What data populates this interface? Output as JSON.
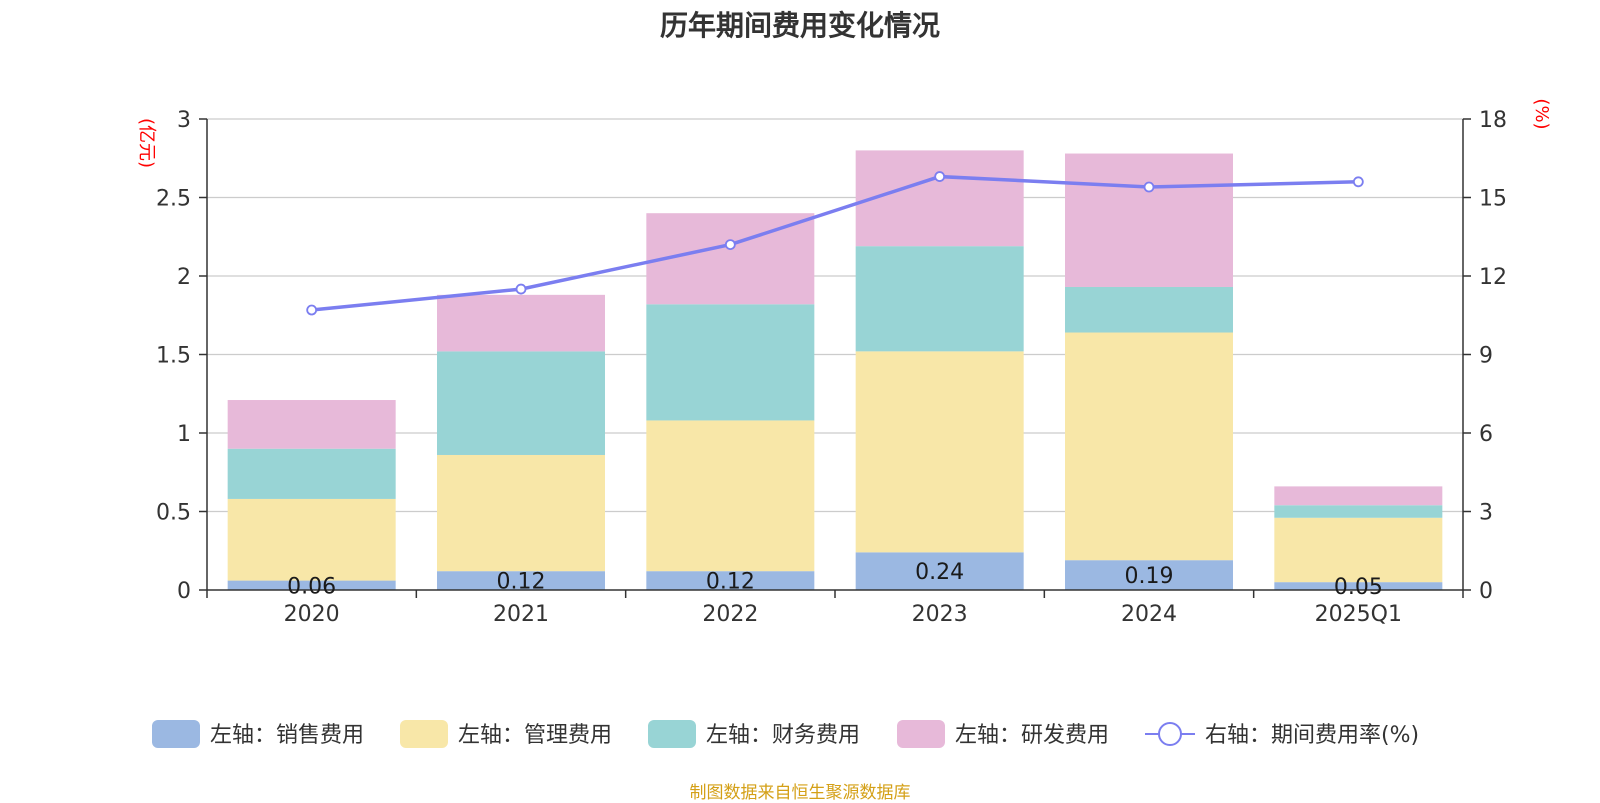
{
  "chart_data": {
    "type": "bar",
    "title": "历年期间费用变化情况",
    "categories": [
      "2020",
      "2021",
      "2022",
      "2023",
      "2024",
      "2025Q1"
    ],
    "stacked": true,
    "left_axis": {
      "unit": "(亿元)",
      "ylim": [
        0,
        3
      ],
      "ticks": [
        "0",
        "0.5",
        "1",
        "1.5",
        "2",
        "2.5",
        "3"
      ],
      "tick_values": [
        0,
        0.5,
        1,
        1.5,
        2,
        2.5,
        3
      ]
    },
    "right_axis": {
      "unit": "(%)",
      "ylim": [
        0,
        18
      ],
      "ticks": [
        "0",
        "3",
        "6",
        "9",
        "12",
        "15",
        "18"
      ],
      "tick_values": [
        0,
        3,
        6,
        9,
        12,
        15,
        18
      ]
    },
    "series": [
      {
        "name": "左轴：销售费用",
        "type": "bar",
        "axis": "left",
        "color": "#9bb8e2",
        "values": [
          0.06,
          0.12,
          0.12,
          0.24,
          0.19,
          0.05
        ],
        "labels": [
          "0.06",
          "0.12",
          "0.12",
          "0.24",
          "0.19",
          "0.05"
        ]
      },
      {
        "name": "左轴：管理费用",
        "type": "bar",
        "axis": "left",
        "color": "#f8e7a8",
        "values": [
          0.52,
          0.74,
          0.96,
          1.28,
          1.45,
          0.41
        ]
      },
      {
        "name": "左轴：财务费用",
        "type": "bar",
        "axis": "left",
        "color": "#98d4d5",
        "values": [
          0.32,
          0.66,
          0.74,
          0.67,
          0.29,
          0.08
        ]
      },
      {
        "name": "左轴：研发费用",
        "type": "bar",
        "axis": "left",
        "color": "#e7b9d9",
        "values": [
          0.31,
          0.36,
          0.58,
          0.61,
          0.85,
          0.12
        ]
      },
      {
        "name": "右轴：期间费用率(%)",
        "type": "line",
        "axis": "right",
        "color": "#7b7ef0",
        "values": [
          10.7,
          11.5,
          13.2,
          15.8,
          15.4,
          15.6
        ]
      }
    ],
    "grid": true,
    "legend_position": "bottom"
  },
  "footer": {
    "text": "制图数据来自恒生聚源数据库",
    "color": "#d4a017"
  },
  "colors": {
    "unit": "#ff0000",
    "axis": "#333333",
    "grid": "#cccccc"
  }
}
